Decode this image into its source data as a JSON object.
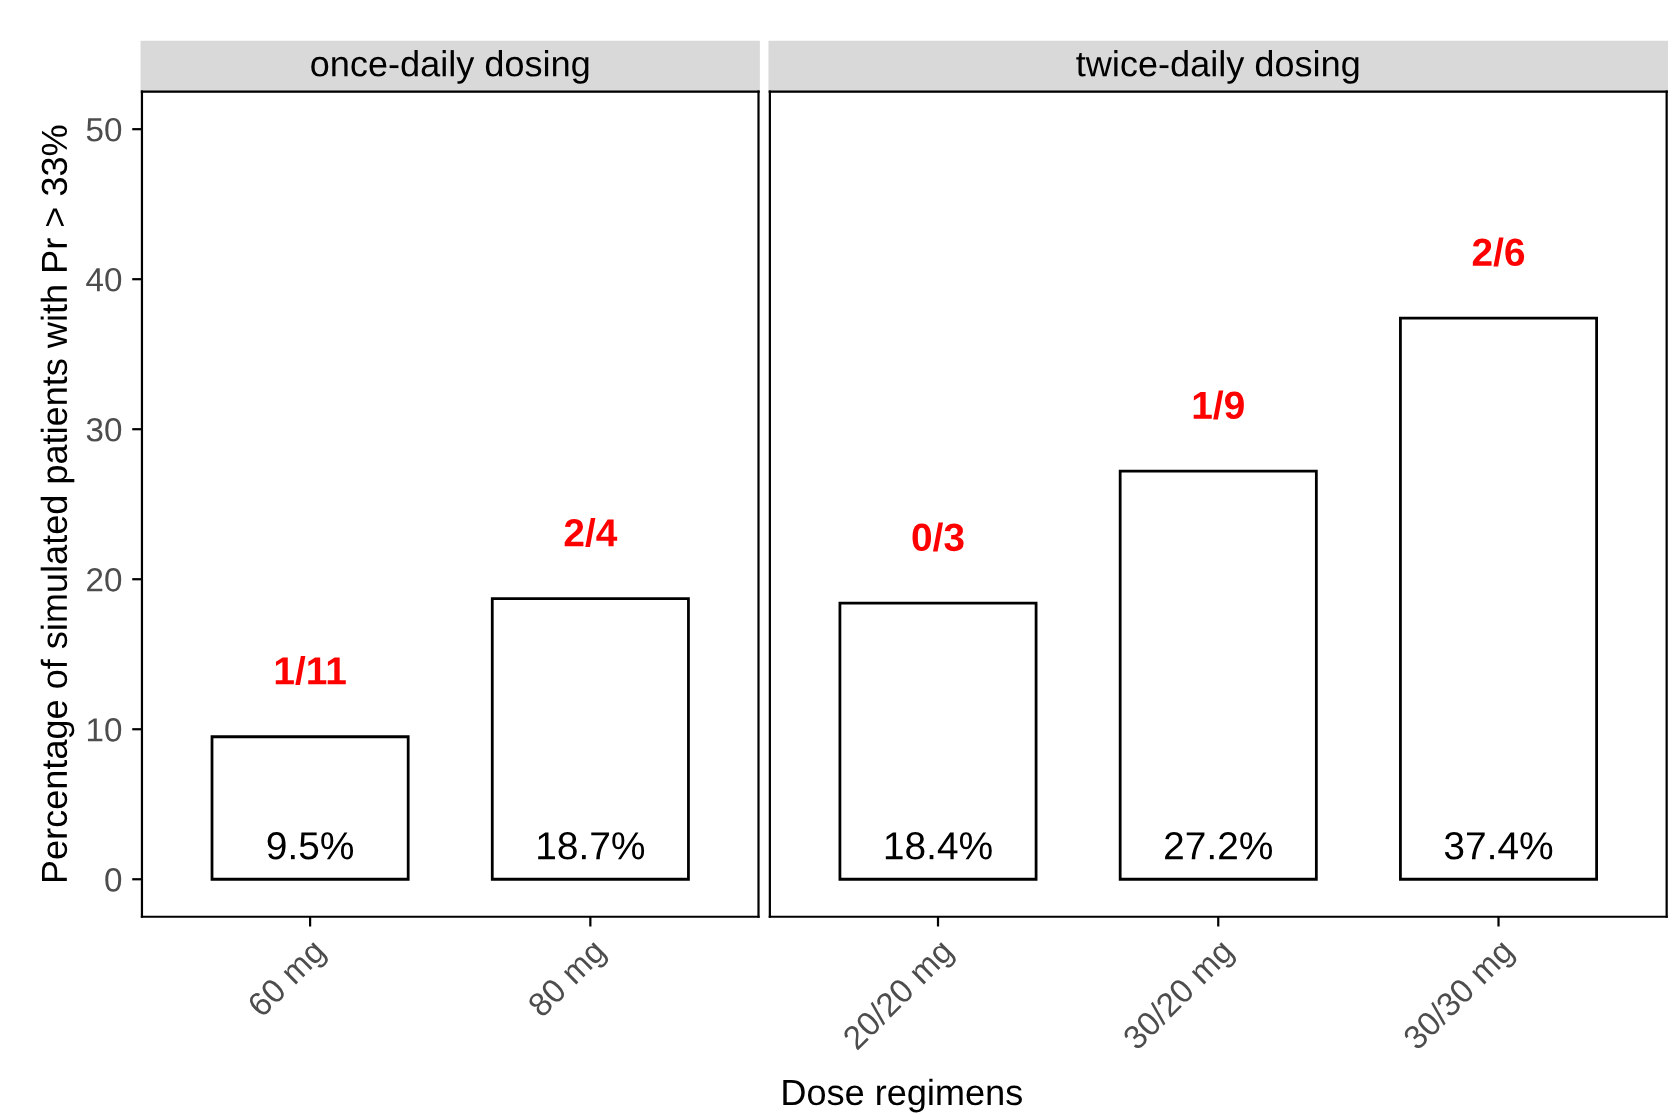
{
  "chart_data": [
    {
      "type": "bar",
      "title": "once-daily dosing",
      "ylabel": "Percentage of simulated patients with Pr > 33%",
      "xlabel": "Dose regimens",
      "categories": [
        "60 mg",
        "80 mg"
      ],
      "values": [
        9.5,
        18.7
      ],
      "value_labels": [
        "9.5%",
        "18.7%"
      ],
      "color": "#ffffff",
      "ylim": [
        -2.5,
        52.5
      ],
      "yticks": [
        0,
        10,
        20,
        30,
        40,
        50
      ],
      "grid": false,
      "annotations": [
        "1/11",
        "2/4"
      ]
    },
    {
      "type": "bar",
      "title": "twice-daily dosing",
      "categories": [
        "20/20 mg",
        "30/20 mg",
        "30/30 mg"
      ],
      "values": [
        18.4,
        27.2,
        37.4
      ],
      "value_labels": [
        "18.4%",
        "27.2%",
        "37.4%"
      ],
      "color": "#ffffff",
      "ylim": [
        -2.5,
        52.5
      ],
      "yticks": [
        0,
        10,
        20,
        30,
        40,
        50
      ],
      "grid": false,
      "tick_labels": "x",
      "annotations": [
        "0/3",
        "1/9",
        "2/6"
      ]
    }
  ]
}
